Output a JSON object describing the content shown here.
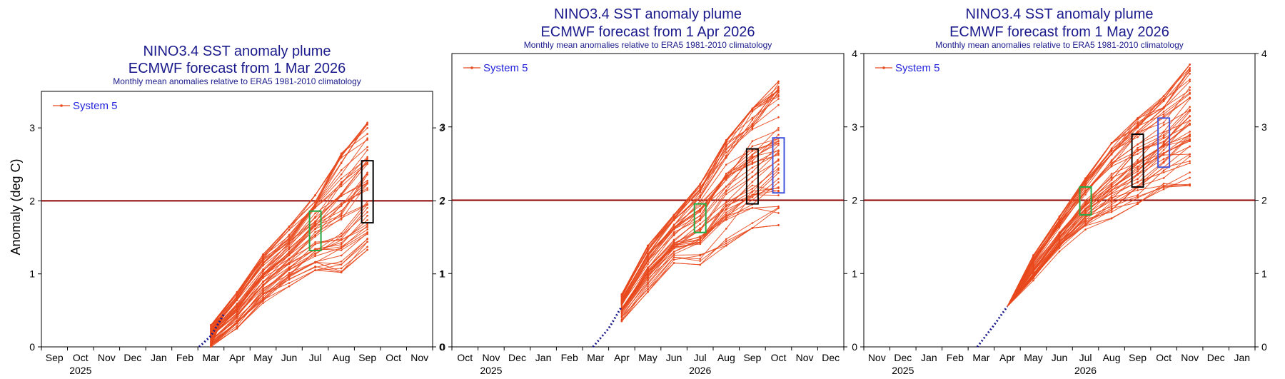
{
  "colors": {
    "member_line": "#e8481c",
    "observed": "#1a1a8c",
    "threshold": "#8b0000",
    "box_jul": "#22aa44",
    "box_sep": "#000000",
    "box_oct": "#4455dd",
    "title": "#1a1a8c",
    "legend_text": "#2222dd"
  },
  "ylabel": "Anomaly (deg C)",
  "chart_data": [
    {
      "type": "line",
      "title_line1": "NINO3.4 SST anomaly plume",
      "title_line2": "ECMWF forecast from 1 Mar 2026",
      "subtitle": "Monthly mean anomalies relative to ERA5 1981-2010 climatology",
      "legend": "System 5",
      "legend_placement": "top-left",
      "months": [
        "Sep",
        "Oct",
        "Nov",
        "Dec",
        "Jan",
        "Feb",
        "Mar",
        "Apr",
        "May",
        "Jun",
        "Jul",
        "Aug",
        "Sep",
        "Oct",
        "Nov"
      ],
      "year_labels": [
        {
          "month_index": 1,
          "label": "2025"
        }
      ],
      "ylim": [
        0,
        3.5
      ],
      "yticks": [
        "0",
        "1",
        "2",
        "3"
      ],
      "threshold": 2,
      "observed": {
        "x": [
          5.55,
          6.0,
          6.5
        ],
        "y": [
          0,
          0.15,
          0.45
        ]
      },
      "forecast_months": [
        6,
        7,
        8,
        9,
        10,
        11,
        12
      ],
      "member_ranges": [
        [
          0.0,
          0.3
        ],
        [
          0.25,
          0.75
        ],
        [
          0.6,
          1.28
        ],
        [
          0.83,
          1.65
        ],
        [
          1.05,
          2.08
        ],
        [
          1.02,
          2.65
        ],
        [
          1.33,
          3.07
        ]
      ],
      "boxes": [
        {
          "month": 10,
          "low": 1.32,
          "high": 1.86,
          "color_key": "box_jul"
        },
        {
          "month": 12,
          "low": 1.7,
          "high": 2.55,
          "color_key": "box_sep"
        }
      ]
    },
    {
      "type": "line",
      "title_line1": "NINO3.4 SST anomaly plume",
      "title_line2": "ECMWF forecast from 1 Apr 2026",
      "subtitle": "Monthly mean anomalies relative to ERA5 1981-2010 climatology",
      "legend": "System 5",
      "legend_placement": "top-left",
      "months": [
        "Oct",
        "Nov",
        "Dec",
        "Jan",
        "Feb",
        "Mar",
        "Apr",
        "May",
        "Jun",
        "Jul",
        "Aug",
        "Sep",
        "Oct",
        "Nov",
        "Dec"
      ],
      "year_labels": [
        {
          "month_index": 1,
          "label": "2025"
        },
        {
          "month_index": 9,
          "label": "2026"
        }
      ],
      "ylim": [
        0,
        4
      ],
      "yticks": [
        "0",
        "1",
        "2",
        "3"
      ],
      "threshold": 2,
      "observed": {
        "x": [
          4.9,
          5.5,
          6.0
        ],
        "y": [
          0,
          0.25,
          0.55
        ]
      },
      "forecast_months": [
        6,
        7,
        8,
        9,
        10,
        11,
        12
      ],
      "member_ranges": [
        [
          0.35,
          0.72
        ],
        [
          0.75,
          1.38
        ],
        [
          1.12,
          1.8
        ],
        [
          1.12,
          2.22
        ],
        [
          1.38,
          2.82
        ],
        [
          1.62,
          3.25
        ],
        [
          1.66,
          3.62
        ]
      ],
      "boxes": [
        {
          "month": 9,
          "low": 1.56,
          "high": 1.95,
          "color_key": "box_jul"
        },
        {
          "month": 11,
          "low": 1.95,
          "high": 2.7,
          "color_key": "box_sep"
        },
        {
          "month": 12,
          "low": 2.1,
          "high": 2.85,
          "color_key": "box_oct"
        }
      ]
    },
    {
      "type": "line",
      "title_line1": "NINO3.4 SST anomaly plume",
      "title_line2": "ECMWF forecast from 1 May 2026",
      "subtitle": "Monthly mean anomalies relative to ERA5 1981-2010 climatology",
      "legend": "System 5",
      "legend_placement": "top-left",
      "months": [
        "Nov",
        "Dec",
        "Jan",
        "Feb",
        "Mar",
        "Apr",
        "May",
        "Jun",
        "Jul",
        "Aug",
        "Sep",
        "Oct",
        "Nov",
        "Dec",
        "Jan"
      ],
      "year_labels": [
        {
          "month_index": 1,
          "label": "2025"
        },
        {
          "month_index": 8,
          "label": "2026"
        }
      ],
      "ylim": [
        0,
        4
      ],
      "yticks": [
        "0",
        "1",
        "2",
        "3",
        "4"
      ],
      "threshold": 2,
      "observed": {
        "x": [
          3.85,
          4.5,
          5.0
        ],
        "y": [
          0,
          0.3,
          0.55
        ]
      },
      "forecast_months": [
        6,
        7,
        8,
        9,
        10,
        11,
        12
      ],
      "member_ranges": [
        [
          0.9,
          1.25
        ],
        [
          1.3,
          1.78
        ],
        [
          1.6,
          2.3
        ],
        [
          1.75,
          2.78
        ],
        [
          1.95,
          3.12
        ],
        [
          2.15,
          3.42
        ],
        [
          2.2,
          3.85
        ]
      ],
      "boxes": [
        {
          "month": 8,
          "low": 1.8,
          "high": 2.18,
          "color_key": "box_jul"
        },
        {
          "month": 10,
          "low": 2.18,
          "high": 2.9,
          "color_key": "box_sep"
        },
        {
          "month": 11,
          "low": 2.45,
          "high": 3.12,
          "color_key": "box_oct"
        }
      ]
    }
  ]
}
